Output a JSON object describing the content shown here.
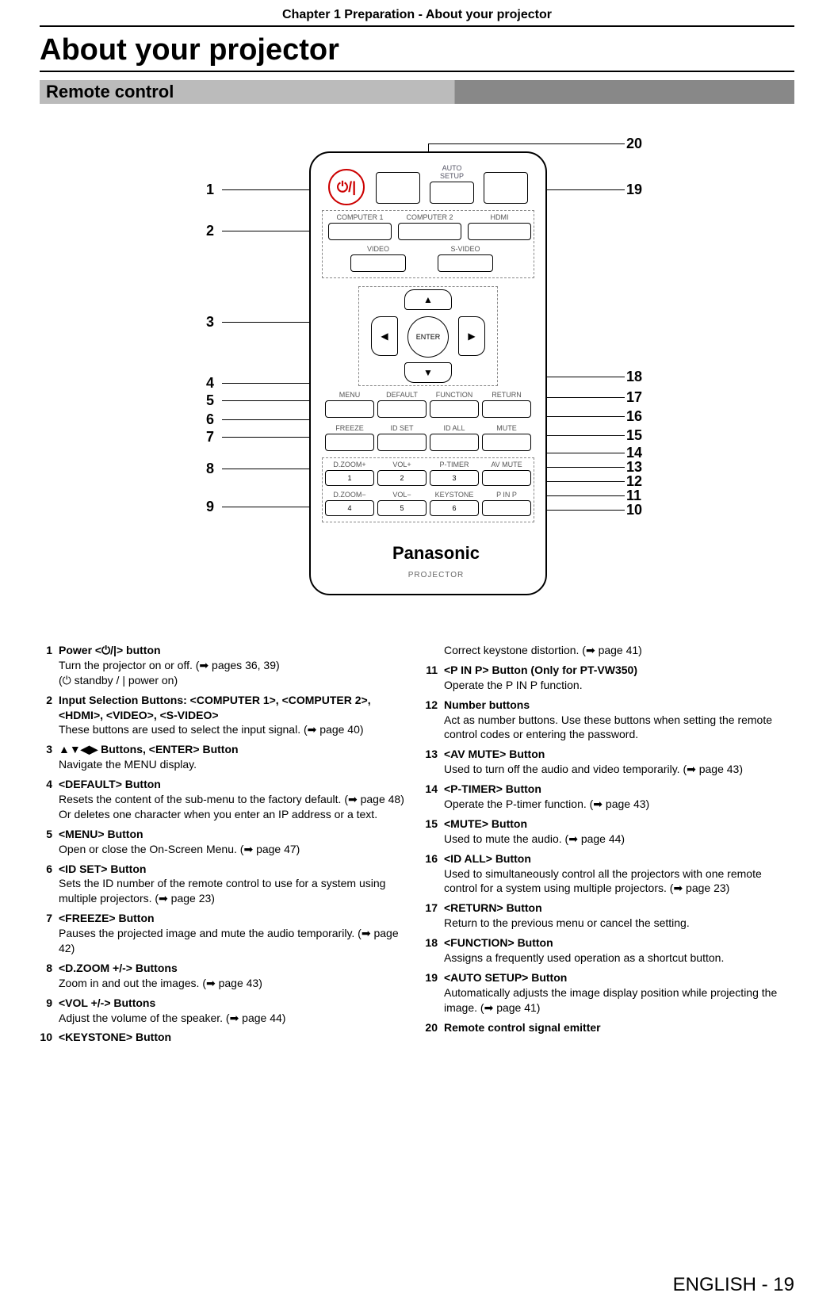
{
  "chapter_header": "Chapter 1   Preparation - About your projector",
  "page_title": "About your projector",
  "section_header": "Remote control",
  "remote": {
    "power_symbol": "⏻/|",
    "auto_setup": "AUTO\nSETUP",
    "inputs": {
      "computer1": "COMPUTER 1",
      "computer2": "COMPUTER 2",
      "hdmi": "HDMI",
      "video": "VIDEO",
      "svideo": "S-VIDEO"
    },
    "enter": "ENTER",
    "menu_row": {
      "menu": "MENU",
      "default": "DEFAULT",
      "function": "FUNCTION",
      "return": "RETURN"
    },
    "id_row": {
      "freeze": "FREEZE",
      "idset": "ID SET",
      "idall": "ID ALL",
      "mute": "MUTE"
    },
    "num_row1": {
      "dzoomp": "D.ZOOM+",
      "volp": "VOL+",
      "ptimer": "P-TIMER",
      "avmute": "AV MUTE",
      "n1": "1",
      "n2": "2",
      "n3": "3"
    },
    "num_row2": {
      "dzoomm": "D.ZOOM−",
      "volm": "VOL−",
      "keystone": "KEYSTONE",
      "pinp": "P IN P",
      "n4": "4",
      "n5": "5",
      "n6": "6"
    },
    "brand": "Panasonic",
    "brand_sub": "PROJECTOR"
  },
  "callouts_left": {
    "1": "1",
    "2": "2",
    "3": "3",
    "4": "4",
    "5": "5",
    "6": "6",
    "7": "7",
    "8": "8",
    "9": "9"
  },
  "callouts_right": {
    "10": "10",
    "11": "11",
    "12": "12",
    "13": "13",
    "14": "14",
    "15": "15",
    "16": "16",
    "17": "17",
    "18": "18",
    "19": "19",
    "20": "20"
  },
  "desc_left": [
    {
      "n": "1",
      "title": "Power  <⏻/|> button",
      "body": "Turn the projector on or off. (➡ pages 36, 39)\n(⏻ standby / | power on)"
    },
    {
      "n": "2",
      "title": "Input Selection Buttons: <COMPUTER 1>, <COMPUTER 2>, <HDMI>, <VIDEO>, <S-VIDEO>",
      "body": "These buttons are used to select the input signal. (➡ page 40)"
    },
    {
      "n": "3",
      "title": "▲▼◀▶ Buttons, <ENTER> Button",
      "body": " Navigate the MENU display."
    },
    {
      "n": "4",
      "title": "<DEFAULT> Button",
      "body": "Resets the content of the sub-menu to the factory default. (➡ page 48) Or deletes one character when you enter an IP address or a text."
    },
    {
      "n": "5",
      "title": "<MENU> Button",
      "body": "Open or close the On-Screen Menu. (➡ page 47)"
    },
    {
      "n": "6",
      "title": "<ID SET> Button",
      "body": "Sets the ID number of the remote control to use for a system using multiple projectors. (➡ page 23)"
    },
    {
      "n": "7",
      "title": "<FREEZE> Button",
      "body": "Pauses the projected image and mute the audio temporarily. (➡ page 42)"
    },
    {
      "n": "8",
      "title": "<D.ZOOM +/-> Buttons",
      "body": "Zoom in and out the images. (➡ page 43)"
    },
    {
      "n": "9",
      "title": "<VOL +/-> Buttons",
      "body": " Adjust the volume of the speaker. (➡ page 44)"
    },
    {
      "n": "10",
      "title": "<KEYSTONE> Button",
      "body": ""
    }
  ],
  "desc_right": [
    {
      "n": "",
      "title": "",
      "body": "Correct keystone distortion. (➡ page 41)"
    },
    {
      "n": "11",
      "title": "<P IN P> Button (Only for PT-VW350)",
      "body": "Operate the P IN P function."
    },
    {
      "n": "12",
      "title": "Number buttons",
      "body": "Act as number buttons. Use these buttons when setting the remote control codes or entering the password."
    },
    {
      "n": "13",
      "title": "<AV MUTE> Button",
      "body": "Used to turn off the audio and video temporarily. (➡ page 43)"
    },
    {
      "n": "14",
      "title": "<P-TIMER> Button",
      "body": "Operate the P-timer function. (➡ page 43)"
    },
    {
      "n": "15",
      "title": "<MUTE> Button",
      "body": " Used to mute the audio. (➡ page 44)"
    },
    {
      "n": "16",
      "title": "<ID ALL> Button",
      "body": "Used to simultaneously control all the projectors with one remote control for a system using multiple projectors. (➡ page 23)"
    },
    {
      "n": "17",
      "title": "<RETURN> Button",
      "body": "Return to the previous menu or cancel the setting."
    },
    {
      "n": "18",
      "title": "<FUNCTION> Button",
      "body": "Assigns a frequently used operation as a shortcut button."
    },
    {
      "n": "19",
      "title": "<AUTO SETUP> Button",
      "body": "Automatically adjusts the image display position while projecting the image. (➡ page 41)"
    },
    {
      "n": "20",
      "title": "Remote control signal emitter",
      "body": ""
    }
  ],
  "footer": "ENGLISH - 19"
}
